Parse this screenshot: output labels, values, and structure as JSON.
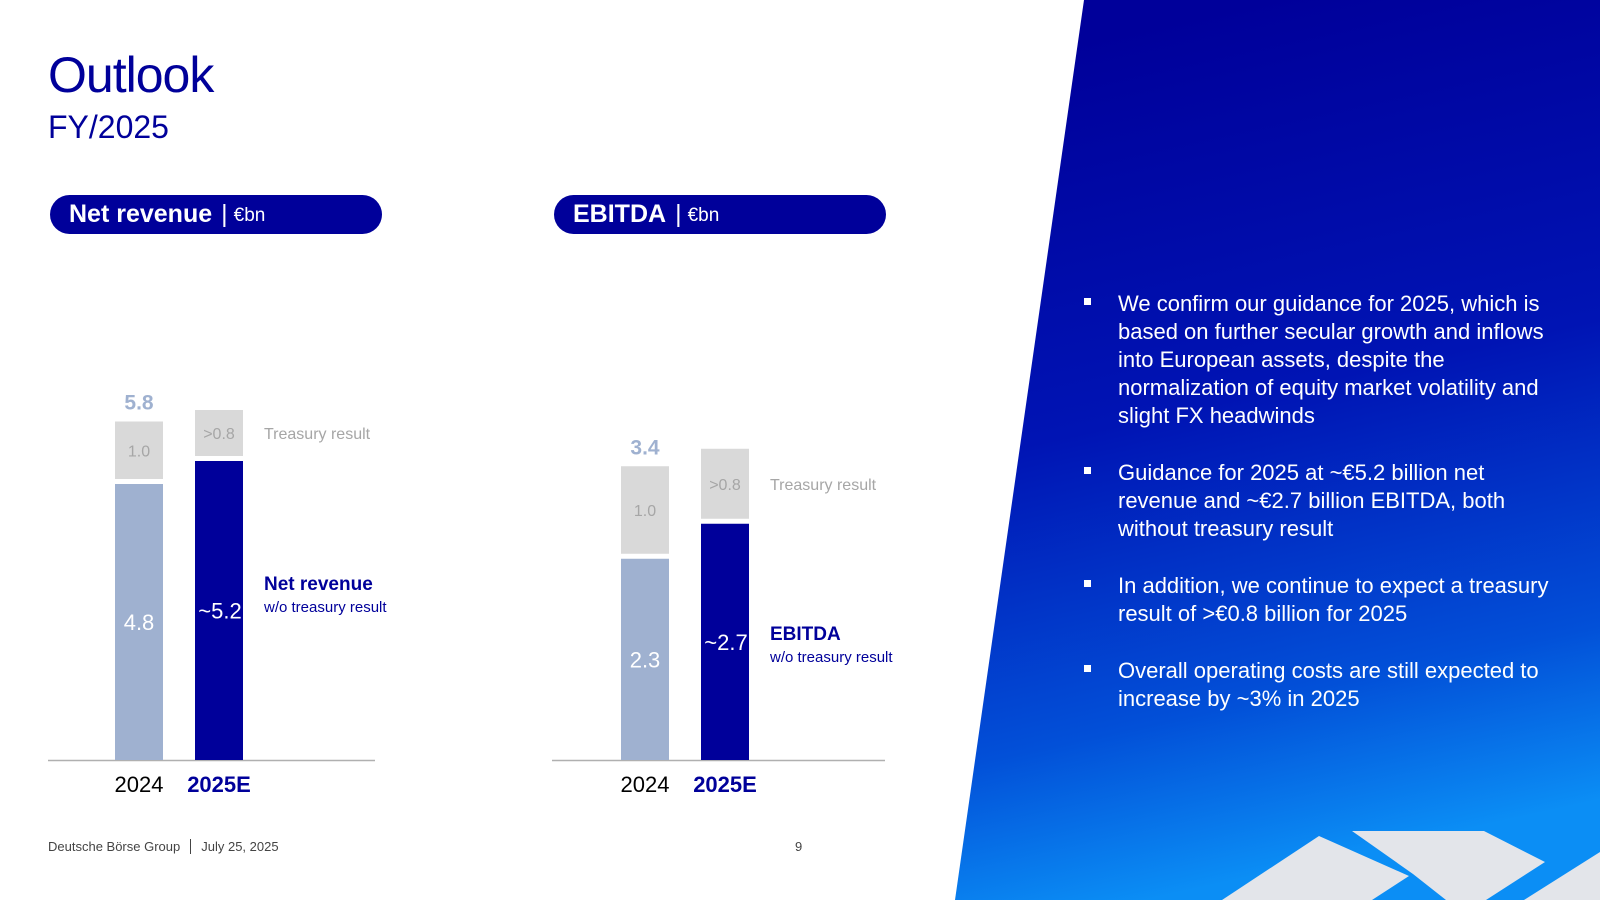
{
  "slide": {
    "title": "Outlook",
    "subtitle": "FY/2025",
    "footer_company": "Deutsche Börse Group",
    "footer_date": "July 25, 2025",
    "page_number": "9"
  },
  "bullets": [
    "We confirm our guidance for 2025, which is based on further secular growth and inflows into European assets, despite the normalization of equity market volatility and slight FX headwinds",
    "Guidance for 2025 at ~€5.2 billion net revenue and ~€2.7 billion EBITDA, both without treasury result",
    "In addition, we continue to expect a treasury result of >€0.8 billion for 2025",
    "Overall operating costs are still expected to increase by ~3% in 2025"
  ],
  "colors": {
    "brand_blue": "#00009a",
    "base_2024": "#9fb1d0",
    "treasury_gray": "#d9d9d9",
    "total_label": "#9fb1d0",
    "treasury_text": "#a6a6a6",
    "panel_gradient_top": "#00009a",
    "panel_gradient_bottom": "#0b8ef5"
  },
  "chart_data": [
    {
      "type": "bar",
      "stacked": true,
      "title": "Net revenue",
      "unit": "€bn",
      "categories": [
        "2024",
        "2025E"
      ],
      "series": [
        {
          "name": "Net revenue w/o treasury result",
          "values": [
            4.8,
            5.2
          ],
          "labels": [
            "4.8",
            "~5.2"
          ]
        },
        {
          "name": "Treasury result",
          "values": [
            1.0,
            0.8
          ],
          "labels": [
            "1.0",
            ">0.8"
          ]
        }
      ],
      "totals": [
        5.8,
        null
      ],
      "total_labels": [
        "5.8",
        ""
      ],
      "annotation_main": "Net revenue",
      "annotation_sub": "w/o treasury result",
      "treasury_label": "Treasury result",
      "ylim": [
        0,
        6.4
      ]
    },
    {
      "type": "bar",
      "stacked": true,
      "title": "EBITDA",
      "unit": "€bn",
      "categories": [
        "2024",
        "2025E"
      ],
      "series": [
        {
          "name": "EBITDA w/o treasury result",
          "values": [
            2.3,
            2.7
          ],
          "labels": [
            "2.3",
            "~2.7"
          ]
        },
        {
          "name": "Treasury result",
          "values": [
            1.0,
            0.8
          ],
          "labels": [
            "1.0",
            ">0.8"
          ]
        }
      ],
      "totals": [
        3.4,
        null
      ],
      "total_labels": [
        "3.4",
        ""
      ],
      "annotation_main": "EBITDA",
      "annotation_sub": "w/o treasury result",
      "treasury_label": "Treasury result",
      "ylim": [
        0,
        4.0
      ]
    }
  ]
}
